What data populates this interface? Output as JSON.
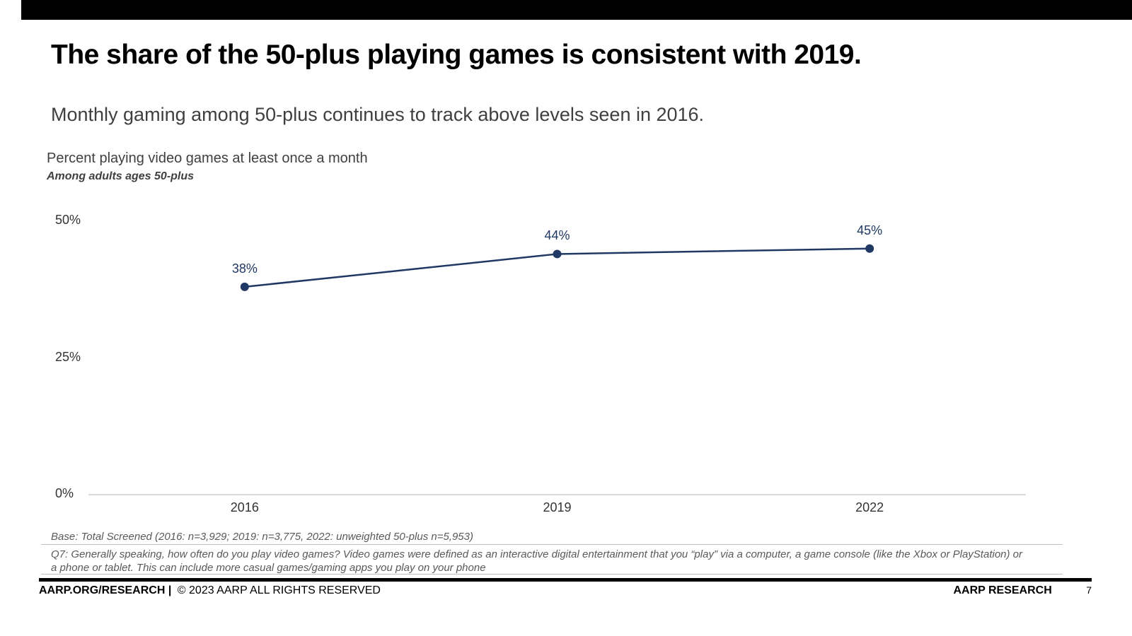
{
  "slide": {
    "title": "The share of the 50-plus playing games is consistent with 2019.",
    "subtitle": "Monthly gaming among 50-plus continues to track above levels seen in 2016."
  },
  "chart_data": {
    "type": "line",
    "title": "Percent playing video games at least once a month",
    "subtitle": "Among adults ages 50-plus",
    "categories": [
      "2016",
      "2019",
      "2022"
    ],
    "series": [
      {
        "name": "Percent playing video games at least once a month",
        "values": [
          38,
          44,
          45
        ]
      }
    ],
    "data_labels": [
      "38%",
      "44%",
      "45%"
    ],
    "y_ticks": [
      {
        "value": 0,
        "label": "0%"
      },
      {
        "value": 25,
        "label": "25%"
      },
      {
        "value": 50,
        "label": "50%"
      }
    ],
    "ylim": [
      0,
      50
    ],
    "line_color": "#1f3864",
    "axis_color": "#d9d9d9",
    "grid": false,
    "legend": "none"
  },
  "footnotes": {
    "base": "Base: Total Screened (2016: n=3,929; 2019: n=3,775, 2022: unweighted 50-plus n=5,953)",
    "q7": "Q7: Generally speaking, how often do you play video games? Video games were defined as an interactive digital entertainment that you “play” via a computer, a game console (like the Xbox or PlayStation) or a phone or tablet. This can include more casual games/gaming apps you play on your phone"
  },
  "footer": {
    "left_bold": "AARP.ORG/RESEARCH |",
    "left_rest": "© 2023 AARP ALL RIGHTS RESERVED",
    "right": "AARP RESEARCH",
    "page_number": "7"
  }
}
